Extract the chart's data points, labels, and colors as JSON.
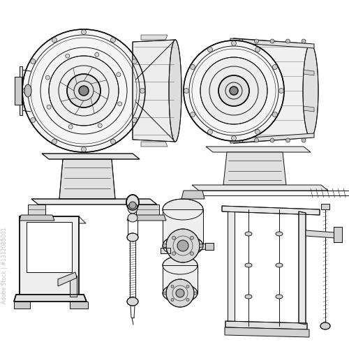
{
  "background_color": "#ffffff",
  "line_color": "#111111",
  "watermark_text": "Adobe Stock | #1312085001",
  "watermark_color": "#bbbbbb",
  "watermark_fontsize": 5.5,
  "figsize": [
    5.0,
    5.0
  ],
  "dpi": 100
}
